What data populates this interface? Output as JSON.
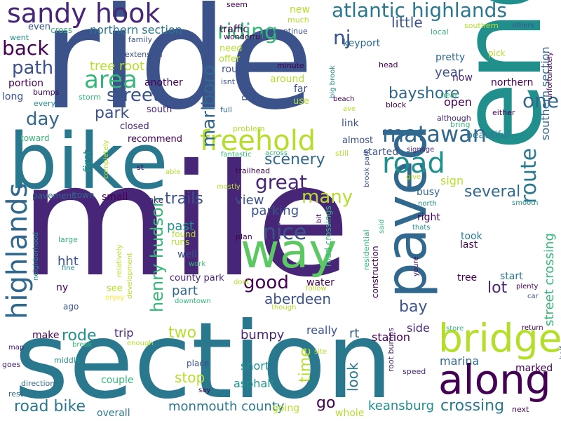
{
  "palette": {
    "dark_purple": "#440154",
    "indigo": "#3b528b",
    "blue": "#31688e",
    "teal": "#21908d",
    "green": "#35b779",
    "lime": "#5dc863",
    "yellow": "#b5de2b",
    "bright_yellow": "#fde725"
  },
  "words": [
    {
      "text": "mile",
      "color": "#482677"
    },
    {
      "text": "ride",
      "color": "#3b528b"
    },
    {
      "text": "section",
      "color": "#2a788e"
    },
    {
      "text": "bike",
      "color": "#2a788e"
    },
    {
      "text": "end",
      "color": "#21908d"
    },
    {
      "text": "along",
      "color": "#440154"
    },
    {
      "text": "paved",
      "color": "#31688e"
    },
    {
      "text": "way",
      "color": "#5dc863"
    },
    {
      "text": "bridge",
      "color": "#b5de2b"
    },
    {
      "text": "freehold",
      "color": "#b5de2b"
    },
    {
      "text": "sandy hook",
      "color": "#482677"
    },
    {
      "text": "atlantic highlands",
      "color": "#2a788e"
    },
    {
      "text": "highlands",
      "color": "#31688e"
    },
    {
      "text": "road",
      "color": "#21908d"
    },
    {
      "text": "matawan",
      "color": "#31688e"
    },
    {
      "text": "riding",
      "color": "#35b779"
    },
    {
      "text": "area",
      "color": "#35b779"
    },
    {
      "text": "nice",
      "color": "#3b528b"
    },
    {
      "text": "street",
      "color": "#3b528b"
    },
    {
      "text": "great",
      "color": "#482677"
    },
    {
      "text": "back",
      "color": "#440154"
    },
    {
      "text": "path",
      "color": "#3b528b"
    },
    {
      "text": "route",
      "color": "#2a788e"
    },
    {
      "text": "henry hudson",
      "color": "#35b779"
    },
    {
      "text": "marlboro",
      "color": "#31688e"
    },
    {
      "text": "many",
      "color": "#b5de2b"
    },
    {
      "text": "one",
      "color": "#31688e"
    },
    {
      "text": "nj",
      "color": "#3b528b"
    },
    {
      "text": "good",
      "color": "#440154"
    },
    {
      "text": "day",
      "color": "#31688e"
    },
    {
      "text": "park",
      "color": "#3b528b"
    },
    {
      "text": "bayshore",
      "color": "#31688e"
    },
    {
      "text": "several",
      "color": "#31688e"
    },
    {
      "text": "scenery",
      "color": "#31688e"
    },
    {
      "text": "trails",
      "color": "#3b528b"
    },
    {
      "text": "two",
      "color": "#b5de2b"
    },
    {
      "text": "rode",
      "color": "#21908d"
    },
    {
      "text": "bay",
      "color": "#3b528b"
    },
    {
      "text": "aberdeen",
      "color": "#3b528b"
    },
    {
      "text": "crossing",
      "color": "#2a788e"
    },
    {
      "text": "road bike",
      "color": "#2a788e"
    },
    {
      "text": "go",
      "color": "#440154"
    },
    {
      "text": "stop",
      "color": "#b5de2b"
    },
    {
      "text": "monmouth county",
      "color": "#2a788e"
    },
    {
      "text": "street crossing",
      "color": "#35b779"
    },
    {
      "text": "southern section",
      "color": "#31688e"
    },
    {
      "text": "tree root",
      "color": "#b5de2b"
    },
    {
      "text": "hht",
      "color": "#3b528b"
    },
    {
      "text": "past",
      "color": "#21908d"
    },
    {
      "text": "view",
      "color": "#3b528b"
    },
    {
      "text": "parking",
      "color": "#3b528b"
    },
    {
      "text": "part",
      "color": "#31688e"
    },
    {
      "text": "lot",
      "color": "#482677"
    },
    {
      "text": "time",
      "color": "#b5de2b"
    },
    {
      "text": "look",
      "color": "#2a788e"
    },
    {
      "text": "little",
      "color": "#3b528b"
    },
    {
      "text": "year",
      "color": "#3b528b"
    },
    {
      "text": "keansburg",
      "color": "#21908d"
    },
    {
      "text": "marina",
      "color": "#31688e"
    },
    {
      "text": "northern section",
      "color": "#2a788e"
    },
    {
      "text": "first",
      "color": "#21908d"
    },
    {
      "text": "sign",
      "color": "#b5de2b"
    },
    {
      "text": "rt",
      "color": "#31688e"
    },
    {
      "text": "bumpy",
      "color": "#482677"
    },
    {
      "text": "short",
      "color": "#21908d"
    },
    {
      "text": "asphalt",
      "color": "#21908d"
    },
    {
      "text": "open",
      "color": "#440154"
    },
    {
      "text": "trip",
      "color": "#482677"
    },
    {
      "text": "station",
      "color": "#440154"
    },
    {
      "text": "side",
      "color": "#482677"
    },
    {
      "text": "really",
      "color": "#3b528b"
    },
    {
      "text": "couple",
      "color": "#35b779"
    },
    {
      "text": "make",
      "color": "#440154"
    },
    {
      "text": "overall",
      "color": "#2a788e"
    },
    {
      "text": "whole",
      "color": "#b5de2b"
    },
    {
      "text": "going",
      "color": "#b5de2b"
    },
    {
      "text": "marked",
      "color": "#440154"
    },
    {
      "text": "traffic",
      "color": "#440154"
    },
    {
      "text": "keyport",
      "color": "#31688e"
    },
    {
      "text": "new",
      "color": "#b5de2b"
    },
    {
      "text": "busy",
      "color": "#31688e"
    },
    {
      "text": "right",
      "color": "#440154"
    },
    {
      "text": "took",
      "color": "#2a788e"
    },
    {
      "text": "start",
      "color": "#2a788e"
    },
    {
      "text": "tree",
      "color": "#440154"
    },
    {
      "text": "last",
      "color": "#440154"
    },
    {
      "text": "small",
      "color": "#440154"
    },
    {
      "text": "well",
      "color": "#3b528b"
    },
    {
      "text": "water",
      "color": "#440154"
    },
    {
      "text": "started",
      "color": "#3b528b"
    },
    {
      "text": "beautiful",
      "color": "#2a788e"
    },
    {
      "text": "county park",
      "color": "#482677"
    },
    {
      "text": "recommend",
      "color": "#440154"
    },
    {
      "text": "closed",
      "color": "#482677"
    },
    {
      "text": "south",
      "color": "#482677"
    },
    {
      "text": "another",
      "color": "#440154"
    },
    {
      "text": "portion",
      "color": "#440154"
    },
    {
      "text": "long",
      "color": "#3b528b"
    },
    {
      "text": "pretty",
      "color": "#31688e"
    },
    {
      "text": "now",
      "color": "#482677"
    },
    {
      "text": "northern",
      "color": "#440154"
    },
    {
      "text": "far",
      "color": "#3b528b"
    },
    {
      "text": "use",
      "color": "#b5de2b"
    },
    {
      "text": "around",
      "color": "#b5de2b"
    },
    {
      "text": "point",
      "color": "#3b528b"
    },
    {
      "text": "rough",
      "color": "#3b528b"
    },
    {
      "text": "need",
      "color": "#b5de2b"
    },
    {
      "text": "offer",
      "color": "#b5de2b"
    },
    {
      "text": "link",
      "color": "#3b528b"
    },
    {
      "text": "almost",
      "color": "#3b528b"
    },
    {
      "text": "road crossings",
      "color": "#35b779"
    },
    {
      "text": "construction",
      "color": "#440154"
    },
    {
      "text": "residential",
      "color": "#35b779"
    },
    {
      "text": "runs",
      "color": "#b5de2b"
    },
    {
      "text": "found",
      "color": "#b5de2b"
    },
    {
      "text": "see",
      "color": "#b5de2b"
    },
    {
      "text": "ny",
      "color": "#440154"
    },
    {
      "text": "ago",
      "color": "#3b528b"
    },
    {
      "text": "take",
      "color": "#482677"
    },
    {
      "text": "town",
      "color": "#31688e"
    },
    {
      "text": "pavement",
      "color": "#31688e"
    },
    {
      "text": "rd",
      "color": "#482677"
    },
    {
      "text": "toward",
      "color": "#35b779"
    },
    {
      "text": "cross",
      "color": "#35b779"
    },
    {
      "text": "went",
      "color": "#21908d"
    },
    {
      "text": "even",
      "color": "#3b528b"
    },
    {
      "text": "bumps",
      "color": "#440154"
    },
    {
      "text": "every",
      "color": "#21908d"
    },
    {
      "text": "storm",
      "color": "#35b779"
    },
    {
      "text": "family",
      "color": "#3b528b"
    },
    {
      "text": "extension",
      "color": "#3b528b"
    },
    {
      "text": "seem",
      "color": "#440154"
    },
    {
      "text": "wonderful",
      "color": "#440154"
    },
    {
      "text": "much",
      "color": "#b5de2b"
    },
    {
      "text": "continue",
      "color": "#3b528b"
    },
    {
      "text": "minute",
      "color": "#440154"
    },
    {
      "text": "isnt",
      "color": "#3b528b"
    },
    {
      "text": "full",
      "color": "#31688e"
    },
    {
      "text": "big brook",
      "color": "#21908d"
    },
    {
      "text": "problem",
      "color": "#b5de2b"
    },
    {
      "text": "fantastic",
      "color": "#35b779"
    },
    {
      "text": "across",
      "color": "#35b779"
    },
    {
      "text": "trailhead",
      "color": "#440154"
    },
    {
      "text": "mostly",
      "color": "#b5de2b"
    },
    {
      "text": "st",
      "color": "#440154"
    },
    {
      "text": "able",
      "color": "#b5de2b"
    },
    {
      "text": "completely",
      "color": "#b5de2b"
    },
    {
      "text": "head",
      "color": "#440154"
    },
    {
      "text": "block",
      "color": "#440154"
    },
    {
      "text": "beach",
      "color": "#440154"
    },
    {
      "text": "ave",
      "color": "#b5de2b"
    },
    {
      "text": "near",
      "color": "#35b779"
    },
    {
      "text": "bring",
      "color": "#35b779"
    },
    {
      "text": "although",
      "color": "#482677"
    },
    {
      "text": "either",
      "color": "#440154"
    },
    {
      "text": "unfortunately",
      "color": "#440154"
    },
    {
      "text": "local",
      "color": "#35b779"
    },
    {
      "text": "southern",
      "color": "#b5de2b"
    },
    {
      "text": "pick",
      "color": "#b5de2b"
    },
    {
      "text": "others",
      "color": "#3b528b"
    },
    {
      "text": "still",
      "color": "#b5de2b"
    },
    {
      "text": "signage",
      "color": "#482677"
    },
    {
      "text": "brook park",
      "color": "#3b528b"
    },
    {
      "text": "bit",
      "color": "#440154"
    },
    {
      "text": "give",
      "color": "#b5de2b"
    },
    {
      "text": "north",
      "color": "#21908d"
    },
    {
      "text": "thats",
      "color": "#21908d"
    },
    {
      "text": "smooth",
      "color": "#21908d"
    },
    {
      "text": "plenty",
      "color": "#440154"
    },
    {
      "text": "car",
      "color": "#3b528b"
    },
    {
      "text": "said",
      "color": "#35b779"
    },
    {
      "text": "youre",
      "color": "#440154"
    },
    {
      "text": "plan",
      "color": "#440154"
    },
    {
      "text": "dont",
      "color": "#b5de2b"
    },
    {
      "text": "though",
      "color": "#b5de2b"
    },
    {
      "text": "follow",
      "color": "#b5de2b"
    },
    {
      "text": "downtown",
      "color": "#35b779"
    },
    {
      "text": "work",
      "color": "#35b779"
    },
    {
      "text": "development",
      "color": "#b5de2b"
    },
    {
      "text": "relatively",
      "color": "#b5de2b"
    },
    {
      "text": "fine",
      "color": "#21908d"
    },
    {
      "text": "enjoy",
      "color": "#fde725"
    },
    {
      "text": "large",
      "color": "#35b779"
    },
    {
      "text": "neighborhood",
      "color": "#21908d"
    },
    {
      "text": "map",
      "color": "#482677"
    },
    {
      "text": "goes",
      "color": "#482677"
    },
    {
      "text": "break",
      "color": "#35b779"
    },
    {
      "text": "middle",
      "color": "#21908d"
    },
    {
      "text": "enough",
      "color": "#b5de2b"
    },
    {
      "text": "direction",
      "color": "#31688e"
    },
    {
      "text": "rest",
      "color": "#31688e"
    },
    {
      "text": "place",
      "color": "#3b528b"
    },
    {
      "text": "say",
      "color": "#440154"
    },
    {
      "text": "site",
      "color": "#b5de2b"
    },
    {
      "text": "root bumps",
      "color": "#482677"
    },
    {
      "text": "store",
      "color": "#35b779"
    },
    {
      "text": "speed",
      "color": "#482677"
    },
    {
      "text": "return",
      "color": "#440154"
    },
    {
      "text": "half",
      "color": "#3b528b"
    },
    {
      "text": "next",
      "color": "#440154"
    }
  ]
}
